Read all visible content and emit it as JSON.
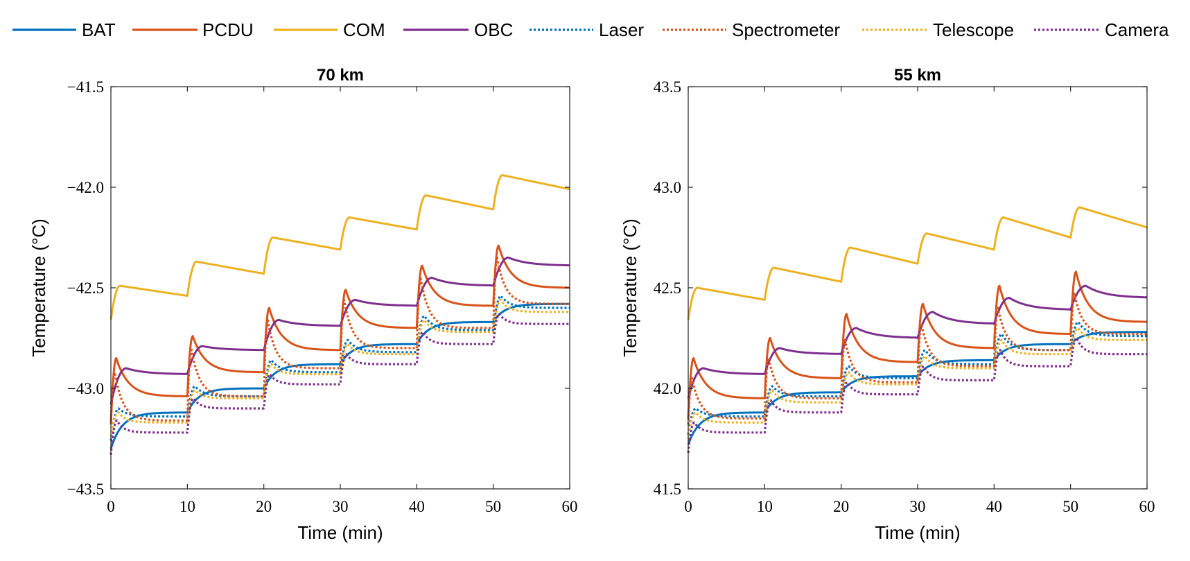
{
  "legend": [
    {
      "name": "BAT",
      "color": "#0072BD",
      "dash": "solid"
    },
    {
      "name": "PCDU",
      "color": "#D95319",
      "dash": "solid"
    },
    {
      "name": "COM",
      "color": "#EDB120",
      "dash": "solid"
    },
    {
      "name": "OBC",
      "color": "#7E2F8E",
      "dash": "solid"
    },
    {
      "name": "Laser",
      "color": "#0072BD",
      "dash": "dotted"
    },
    {
      "name": "Spectrometer",
      "color": "#D95319",
      "dash": "dotted"
    },
    {
      "name": "Telescope",
      "color": "#EDB120",
      "dash": "dotted"
    },
    {
      "name": "Camera",
      "color": "#7E2F8E",
      "dash": "dotted"
    }
  ],
  "chart_data": [
    {
      "type": "line",
      "title": "70 km",
      "xlabel": "Time (min)",
      "ylabel": "Temperature (°C)",
      "xlim": [
        0,
        60
      ],
      "ylim": [
        -43.5,
        -41.5
      ],
      "xticks": [
        0,
        10,
        20,
        30,
        40,
        50,
        60
      ],
      "xtick_labels": [
        "0",
        "10",
        "20",
        "30",
        "40",
        "50",
        "60"
      ],
      "yticks": [
        -43.5,
        -43.0,
        -42.5,
        -42.0,
        -41.5
      ],
      "ytick_labels": [
        "−43.5",
        "−43.0",
        "−42.5",
        "−42.0",
        "−41.5"
      ],
      "step_times": [
        0,
        10,
        20,
        30,
        40,
        50
      ],
      "series": [
        {
          "name": "BAT",
          "model": "rise",
          "start": -43.3,
          "steady": [
            -43.12,
            -43.0,
            -42.88,
            -42.78,
            -42.67,
            -42.58
          ],
          "tau": 1.5
        },
        {
          "name": "PCDU",
          "model": "spike",
          "start": -43.18,
          "peaks": [
            -42.85,
            -42.74,
            -42.6,
            -42.51,
            -42.39,
            -42.29
          ],
          "ends": [
            -43.04,
            -42.92,
            -42.81,
            -42.7,
            -42.59,
            -42.5
          ],
          "delay": 0.7,
          "tau": 1.6
        },
        {
          "name": "COM",
          "model": "saw",
          "start": -42.66,
          "peaks": [
            -42.49,
            -42.37,
            -42.25,
            -42.15,
            -42.04,
            -41.94
          ],
          "ends": [
            -42.54,
            -42.43,
            -42.31,
            -42.21,
            -42.11,
            -42.01
          ],
          "delay": 1.2
        },
        {
          "name": "OBC",
          "model": "spike",
          "start": -43.08,
          "peaks": [
            -42.9,
            -42.79,
            -42.66,
            -42.56,
            -42.45,
            -42.35
          ],
          "ends": [
            -42.93,
            -42.81,
            -42.69,
            -42.59,
            -42.49,
            -42.39
          ],
          "delay": 2.0,
          "tau": 2.5
        },
        {
          "name": "Laser",
          "model": "spike",
          "start": -43.26,
          "peaks": [
            -43.1,
            -42.99,
            -42.86,
            -42.76,
            -42.64,
            -42.54
          ],
          "ends": [
            -43.14,
            -43.04,
            -42.92,
            -42.82,
            -42.71,
            -42.6
          ],
          "delay": 1.0,
          "tau": 1.2
        },
        {
          "name": "Spectrometer",
          "model": "spike",
          "start": -43.16,
          "peaks": [
            -42.92,
            -42.8,
            -42.66,
            -42.56,
            -42.45,
            -42.35
          ],
          "ends": [
            -43.16,
            -43.04,
            -42.9,
            -42.8,
            -42.7,
            -42.58
          ],
          "delay": 0.5,
          "tau": 1.1
        },
        {
          "name": "Telescope",
          "model": "spike",
          "start": -43.24,
          "peaks": [
            -43.12,
            -43.01,
            -42.88,
            -42.78,
            -42.66,
            -42.56
          ],
          "ends": [
            -43.17,
            -43.05,
            -42.93,
            -42.83,
            -42.72,
            -42.62
          ],
          "delay": 1.0,
          "tau": 1.0
        },
        {
          "name": "Camera",
          "model": "spike",
          "start": -43.33,
          "peaks": [
            -43.16,
            -43.05,
            -42.93,
            -42.83,
            -42.72,
            -42.63
          ],
          "ends": [
            -43.22,
            -43.1,
            -42.98,
            -42.88,
            -42.78,
            -42.68
          ],
          "delay": 0.8,
          "tau": 0.9
        }
      ]
    },
    {
      "type": "line",
      "title": "55 km",
      "xlabel": "Time (min)",
      "ylabel": "Temperature (°C)",
      "xlim": [
        0,
        60
      ],
      "ylim": [
        41.5,
        43.5
      ],
      "xticks": [
        0,
        10,
        20,
        30,
        40,
        50,
        60
      ],
      "xtick_labels": [
        "0",
        "10",
        "20",
        "30",
        "40",
        "50",
        "60"
      ],
      "yticks": [
        41.5,
        42.0,
        42.5,
        43.0,
        43.5
      ],
      "ytick_labels": [
        "41.5",
        "42.0",
        "42.5",
        "43.0",
        "43.5"
      ],
      "step_times": [
        0,
        10,
        20,
        30,
        40,
        50
      ],
      "series": [
        {
          "name": "BAT",
          "model": "rise",
          "start": 41.72,
          "steady": [
            41.88,
            41.98,
            42.06,
            42.14,
            42.22,
            42.28
          ],
          "tau": 1.5
        },
        {
          "name": "PCDU",
          "model": "spike",
          "start": 41.85,
          "peaks": [
            42.15,
            42.25,
            42.37,
            42.42,
            42.51,
            42.58
          ],
          "ends": [
            41.95,
            42.05,
            42.13,
            42.2,
            42.27,
            42.33
          ],
          "delay": 0.7,
          "tau": 1.6
        },
        {
          "name": "COM",
          "model": "saw",
          "start": 42.34,
          "peaks": [
            42.5,
            42.6,
            42.7,
            42.77,
            42.85,
            42.9
          ],
          "ends": [
            42.44,
            42.53,
            42.62,
            42.69,
            42.75,
            42.8
          ],
          "delay": 1.2
        },
        {
          "name": "OBC",
          "model": "spike",
          "start": 41.95,
          "peaks": [
            42.1,
            42.2,
            42.3,
            42.38,
            42.45,
            42.51
          ],
          "ends": [
            42.07,
            42.17,
            42.25,
            42.32,
            42.39,
            42.45
          ],
          "delay": 2.0,
          "tau": 2.5
        },
        {
          "name": "Laser",
          "model": "spike",
          "start": 41.77,
          "peaks": [
            41.9,
            42.01,
            42.11,
            42.19,
            42.27,
            42.33
          ],
          "ends": [
            41.86,
            41.96,
            42.05,
            42.12,
            42.19,
            42.26
          ],
          "delay": 1.0,
          "tau": 1.2
        },
        {
          "name": "Spectrometer",
          "model": "spike",
          "start": 41.82,
          "peaks": [
            42.05,
            42.15,
            42.24,
            42.32,
            42.4,
            42.47
          ],
          "ends": [
            41.85,
            41.95,
            42.03,
            42.11,
            42.19,
            42.27
          ],
          "delay": 0.5,
          "tau": 1.1
        },
        {
          "name": "Telescope",
          "model": "spike",
          "start": 41.75,
          "peaks": [
            41.88,
            41.99,
            42.08,
            42.16,
            42.24,
            42.3
          ],
          "ends": [
            41.83,
            41.93,
            42.02,
            42.1,
            42.17,
            42.24
          ],
          "delay": 1.0,
          "tau": 1.0
        },
        {
          "name": "Camera",
          "model": "spike",
          "start": 41.68,
          "peaks": [
            41.83,
            41.94,
            42.03,
            42.11,
            42.19,
            42.25
          ],
          "ends": [
            41.78,
            41.88,
            41.97,
            42.04,
            42.11,
            42.17
          ],
          "delay": 0.8,
          "tau": 0.9
        }
      ]
    }
  ]
}
